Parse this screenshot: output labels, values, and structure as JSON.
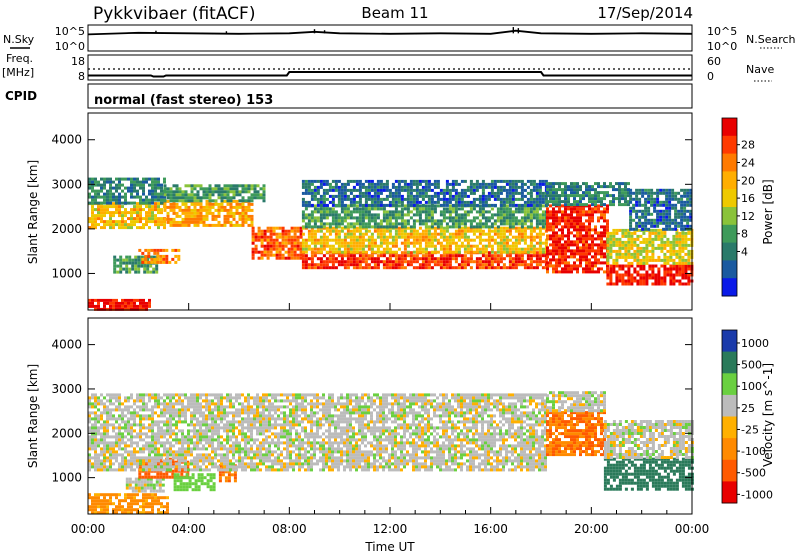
{
  "header": {
    "station": "Pykkvibaer (fitACF)",
    "beam": "Beam 11",
    "date": "17/Sep/2014"
  },
  "noise_panel": {
    "left_label": "N.Sky",
    "right_label": "N.Search",
    "left_top_tick": "10^5",
    "left_bottom_tick": "10^0",
    "right_top_tick": "10^5",
    "right_bottom_tick": "10^0"
  },
  "freq_panel": {
    "left_label_1": "Freq.",
    "left_label_2": "[MHz]",
    "right_label": "Nave",
    "left_top_tick": "18",
    "left_bottom_tick": "8",
    "right_top_tick": "60",
    "right_bottom_tick": "0"
  },
  "cpid_panel": {
    "label": "CPID",
    "mode_text": "normal (fast stereo) 153"
  },
  "x_axis": {
    "title": "Time UT",
    "ticks": [
      "00:00",
      "04:00",
      "08:00",
      "12:00",
      "16:00",
      "20:00",
      "00:00"
    ]
  },
  "power_colorbar": {
    "title": "Power [dB]",
    "ticks": [
      "28",
      "24",
      "20",
      "16",
      "12",
      "8",
      "4"
    ],
    "colors": [
      "#e80000",
      "#ff3a00",
      "#ff7a00",
      "#ffae00",
      "#eec900",
      "#8ac33a",
      "#3e9a5a",
      "#2a7a6a",
      "#1a5aa0",
      "#0a1ae8"
    ]
  },
  "velocity_colorbar": {
    "title": "Velocity [m s^-1]",
    "ticks": [
      "1000",
      "500",
      "100",
      "25",
      "-25",
      "-100",
      "-500",
      "-1000"
    ],
    "colors": [
      "#1a3aaa",
      "#2a7a5a",
      "#6ad040",
      "#bcbcbc",
      "#ffb000",
      "#ff8a00",
      "#ff5a00",
      "#e80000"
    ]
  },
  "chart_data": [
    {
      "type": "line",
      "title": "N.Sky / N.Search",
      "ylabel": "N.Sky",
      "xlim": [
        0,
        24
      ],
      "ylim": [
        0,
        5
      ],
      "scale": "log",
      "series": [
        {
          "name": "N.Sky",
          "x": [
            0,
            2,
            4,
            6,
            8,
            9,
            10,
            12,
            14,
            16,
            17,
            18,
            20,
            22,
            24
          ],
          "values": [
            3.2,
            3.5,
            3.4,
            3.3,
            3.4,
            3.7,
            3.4,
            3.3,
            3.4,
            3.3,
            3.9,
            3.4,
            3.3,
            3.4,
            3.3
          ]
        }
      ]
    },
    {
      "type": "line",
      "title": "Freq. / Nave",
      "ylabel": "Freq. [MHz]",
      "xlim": [
        0,
        24
      ],
      "ylim": [
        8,
        18
      ],
      "series": [
        {
          "name": "Freq.",
          "x": [
            0,
            2.5,
            2.6,
            3.0,
            3.1,
            7.9,
            8.0,
            18.0,
            18.1,
            24
          ],
          "values": [
            9.8,
            9.8,
            9.4,
            9.4,
            9.8,
            9.8,
            11.2,
            11.2,
            9.8,
            9.8
          ]
        }
      ]
    },
    {
      "type": "heatmap",
      "title": "Power",
      "ylabel": "Slant Range [km]",
      "xlabel": "",
      "xlim": [
        0,
        24
      ],
      "ylim": [
        180,
        4600
      ],
      "y_ticks": [
        1000,
        2000,
        3000,
        4000
      ],
      "colorbar_range": [
        0,
        30
      ],
      "regions": [
        {
          "t0": 0.0,
          "t1": 2.4,
          "r0": 200,
          "r1": 430,
          "value": 28
        },
        {
          "t0": 0.0,
          "t1": 3.0,
          "r0": 2050,
          "r1": 2600,
          "value": 18
        },
        {
          "t0": 0.0,
          "t1": 3.0,
          "r0": 2600,
          "r1": 3150,
          "value": 8
        },
        {
          "t0": 1.0,
          "t1": 2.7,
          "r0": 1050,
          "r1": 1400,
          "value": 10
        },
        {
          "t0": 2.0,
          "t1": 3.6,
          "r0": 1250,
          "r1": 1550,
          "value": 22
        },
        {
          "t0": 3.0,
          "t1": 6.5,
          "r0": 2050,
          "r1": 2650,
          "value": 20
        },
        {
          "t0": 3.0,
          "t1": 7.0,
          "r0": 2650,
          "r1": 3000,
          "value": 10
        },
        {
          "t0": 6.5,
          "t1": 8.5,
          "r0": 1350,
          "r1": 2050,
          "value": 24
        },
        {
          "t0": 8.5,
          "t1": 18.2,
          "r0": 1100,
          "r1": 1500,
          "value": 26
        },
        {
          "t0": 8.5,
          "t1": 18.2,
          "r0": 1500,
          "r1": 2050,
          "value": 18
        },
        {
          "t0": 8.5,
          "t1": 18.2,
          "r0": 2050,
          "r1": 2550,
          "value": 10
        },
        {
          "t0": 8.5,
          "t1": 18.2,
          "r0": 2550,
          "r1": 3100,
          "value": 6
        },
        {
          "t0": 18.2,
          "t1": 20.6,
          "r0": 1050,
          "r1": 2550,
          "value": 27
        },
        {
          "t0": 18.2,
          "t1": 21.5,
          "r0": 2550,
          "r1": 3050,
          "value": 8
        },
        {
          "t0": 20.6,
          "t1": 24.0,
          "r0": 750,
          "r1": 1200,
          "value": 28
        },
        {
          "t0": 20.6,
          "t1": 24.0,
          "r0": 1200,
          "r1": 2000,
          "value": 16
        },
        {
          "t0": 21.5,
          "t1": 24.0,
          "r0": 2000,
          "r1": 2900,
          "value": 6
        }
      ]
    },
    {
      "type": "heatmap",
      "title": "Velocity",
      "ylabel": "Slant Range [km]",
      "xlabel": "Time UT",
      "xlim": [
        0,
        24
      ],
      "ylim": [
        180,
        4600
      ],
      "y_ticks": [
        1000,
        2000,
        3000,
        4000
      ],
      "colorbar_range": [
        -1000,
        1000
      ],
      "regions": [
        {
          "t0": 0.0,
          "t1": 3.2,
          "r0": 200,
          "r1": 650,
          "value": -200
        },
        {
          "t0": 1.5,
          "t1": 3.0,
          "r0": 700,
          "r1": 1000,
          "value": 0
        },
        {
          "t0": 2.0,
          "t1": 4.0,
          "r0": 1000,
          "r1": 1450,
          "value": -400
        },
        {
          "t0": 3.4,
          "t1": 5.0,
          "r0": 750,
          "r1": 1100,
          "value": 150
        },
        {
          "t0": 5.2,
          "t1": 5.8,
          "r0": 900,
          "r1": 1300,
          "value": -300
        },
        {
          "t0": 0.0,
          "t1": 18.2,
          "r0": 1200,
          "r1": 2900,
          "value": 0
        },
        {
          "t0": 18.2,
          "t1": 20.5,
          "r0": 1500,
          "r1": 2500,
          "value": -300
        },
        {
          "t0": 18.2,
          "t1": 20.5,
          "r0": 2500,
          "r1": 2950,
          "value": 0
        },
        {
          "t0": 20.5,
          "t1": 24.0,
          "r0": 750,
          "r1": 1450,
          "value": 400
        },
        {
          "t0": 20.5,
          "t1": 24.0,
          "r0": 1450,
          "r1": 2300,
          "value": 0
        }
      ]
    }
  ]
}
